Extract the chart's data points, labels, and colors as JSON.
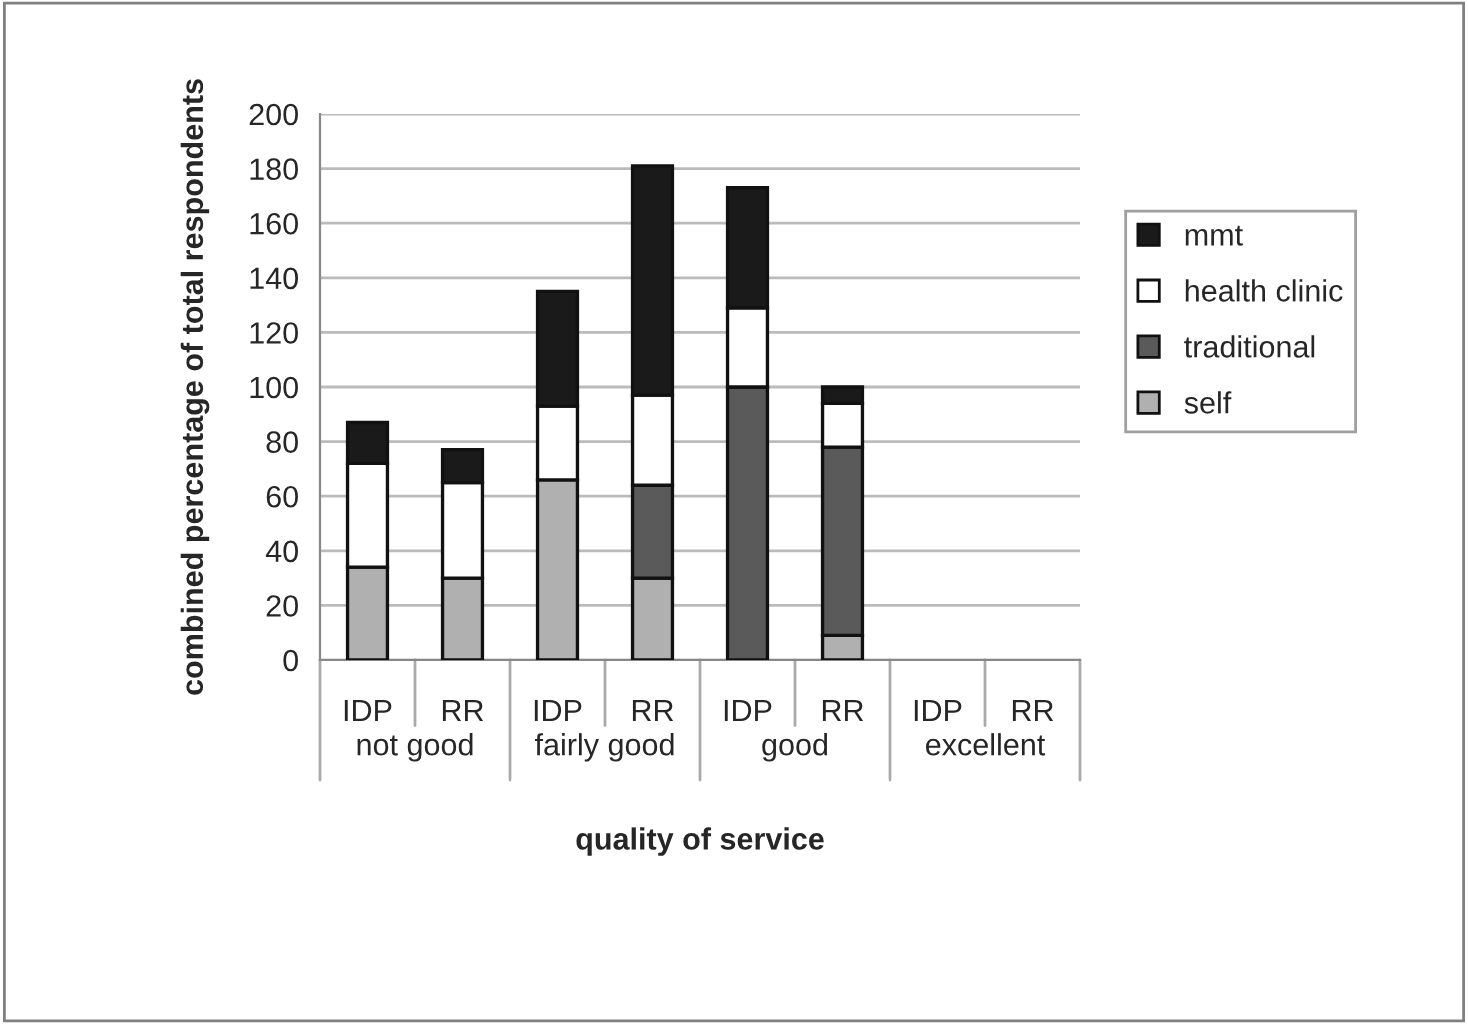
{
  "chart_data": {
    "type": "bar",
    "stacked": true,
    "xlabel": "quality of service",
    "ylabel": "combined percentage of total respondents",
    "categories": [
      "IDP",
      "RR",
      "IDP",
      "RR",
      "IDP",
      "RR",
      "IDP",
      "RR"
    ],
    "annotations": [
      "not good",
      "fairly good",
      "good",
      "excellent"
    ],
    "series": [
      {
        "name": "self",
        "color": "#b0b0b0",
        "values": [
          34,
          30,
          66,
          30,
          0,
          9,
          null,
          null
        ]
      },
      {
        "name": "traditional",
        "color": "#5a5a5a",
        "values": [
          0,
          0,
          0,
          34,
          100,
          69,
          null,
          null
        ]
      },
      {
        "name": "health clinic",
        "color": "#ffffff",
        "values": [
          38,
          35,
          27,
          33,
          29,
          16,
          null,
          null
        ]
      },
      {
        "name": "mmt",
        "color": "#1a1a1a",
        "values": [
          15,
          12,
          42,
          84,
          44,
          6,
          null,
          null
        ]
      }
    ],
    "ylim": [
      0,
      200
    ],
    "yticks": [
      0,
      20,
      40,
      60,
      80,
      100,
      120,
      140,
      160,
      180,
      200
    ],
    "grid": "y",
    "legend": "right"
  }
}
